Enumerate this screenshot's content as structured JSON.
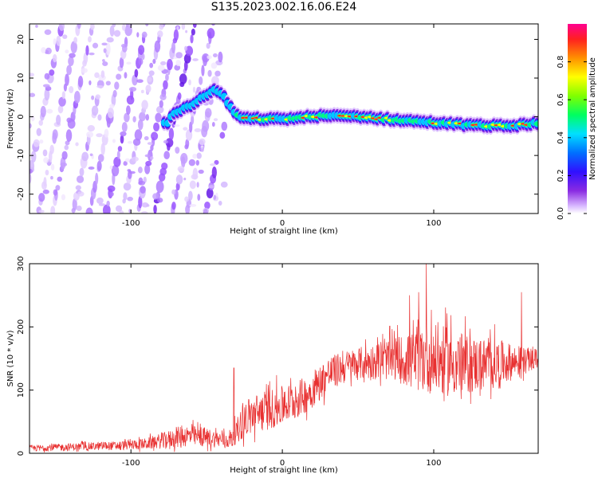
{
  "title": "S135.2023.002.16.06.E24",
  "colors": {
    "snr_line": "#e83030",
    "ridge_low": "#6a00ff",
    "ridge_high": "#ff2020"
  },
  "chart_data": [
    {
      "type": "heatmap",
      "xlabel": "Height of straight line (km)",
      "ylabel": "Frequency (Hz)",
      "xlim": [
        -167,
        169
      ],
      "ylim": [
        -25,
        24
      ],
      "xticks": [
        -100,
        0,
        100
      ],
      "yticks": [
        -20,
        -10,
        0,
        10,
        20
      ],
      "ridge_center": [
        [
          -167,
          null
        ],
        [
          -75,
          0
        ],
        [
          -60,
          3
        ],
        [
          -45,
          7
        ],
        [
          -38,
          5
        ],
        [
          -32,
          1
        ],
        [
          -25,
          -0.5
        ],
        [
          0,
          -0.6
        ],
        [
          25,
          0.2
        ],
        [
          50,
          0.1
        ],
        [
          75,
          -0.8
        ],
        [
          100,
          -1.5
        ],
        [
          125,
          -2.2
        ],
        [
          150,
          -2.4
        ],
        [
          169,
          -1.6
        ]
      ],
      "colorbar": {
        "label": "Normalized spectral amplitude",
        "range": [
          0,
          1
        ],
        "ticks": [
          0.0,
          0.2,
          0.4,
          0.6,
          0.8
        ],
        "tick_labels": [
          "0.0",
          "0.2",
          "0.4",
          "0.6",
          "0.8"
        ]
      }
    },
    {
      "type": "line",
      "xlabel": "Height of straight line (km)",
      "ylabel": "SNR (10 * v/v)",
      "xlim": [
        -167,
        169
      ],
      "ylim": [
        0,
        300
      ],
      "xticks": [
        -100,
        0,
        100
      ],
      "yticks": [
        0,
        100,
        200,
        300
      ],
      "envelope": {
        "x": [
          -167,
          -140,
          -110,
          -90,
          -75,
          -65,
          -50,
          -35,
          -30,
          -25,
          -15,
          0,
          10,
          20,
          30,
          45,
          60,
          75,
          85,
          95,
          110,
          125,
          140,
          155,
          169
        ],
        "mean": [
          8,
          10,
          12,
          15,
          22,
          28,
          25,
          20,
          35,
          55,
          65,
          75,
          85,
          100,
          125,
          140,
          145,
          150,
          145,
          150,
          145,
          140,
          142,
          145,
          150
        ],
        "spread": [
          5,
          6,
          7,
          9,
          14,
          18,
          15,
          12,
          20,
          30,
          32,
          32,
          30,
          28,
          28,
          25,
          28,
          35,
          45,
          55,
          55,
          45,
          40,
          25,
          15
        ]
      },
      "peaks": [
        [
          95,
          300
        ],
        [
          90,
          255
        ],
        [
          158,
          255
        ],
        [
          84,
          250
        ],
        [
          -32,
          135
        ]
      ]
    }
  ]
}
